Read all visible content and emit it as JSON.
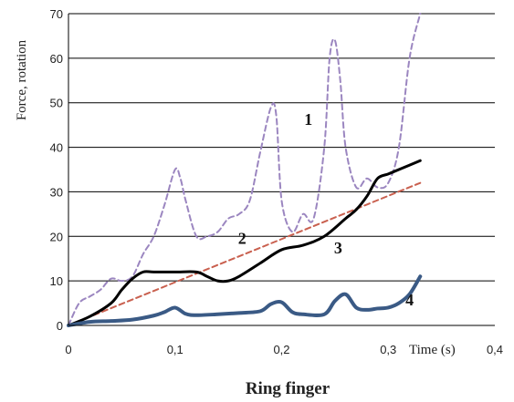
{
  "chart_data": {
    "type": "line",
    "title": "Ring finger",
    "xlabel": "Time (s)",
    "ylabel": "Force, rotation",
    "xlim": [
      0,
      0.4
    ],
    "ylim": [
      0,
      70
    ],
    "xticks": [
      "0",
      "0,1",
      "0,2",
      "0,3",
      "0,4"
    ],
    "yticks": [
      "0",
      "10",
      "20",
      "30",
      "40",
      "50",
      "60",
      "70"
    ],
    "grid": "horizontal",
    "series": [
      {
        "name": "1",
        "color": "#9b86c0",
        "style": "dashed",
        "x": [
          0.0,
          0.01,
          0.02,
          0.03,
          0.04,
          0.05,
          0.06,
          0.07,
          0.08,
          0.09,
          0.1,
          0.105,
          0.11,
          0.12,
          0.13,
          0.14,
          0.15,
          0.16,
          0.17,
          0.18,
          0.19,
          0.195,
          0.2,
          0.21,
          0.22,
          0.23,
          0.24,
          0.245,
          0.25,
          0.255,
          0.26,
          0.27,
          0.28,
          0.29,
          0.3,
          0.31,
          0.32,
          0.33
        ],
        "values": [
          0,
          5,
          6.5,
          8,
          10.5,
          10,
          11,
          16,
          20,
          27,
          35,
          33,
          28,
          20,
          20,
          21,
          24,
          25,
          28,
          39,
          49,
          47,
          28,
          21,
          25,
          24,
          40,
          60,
          64,
          55,
          40,
          31,
          33,
          31,
          32,
          40,
          60,
          71
        ]
      },
      {
        "name": "2",
        "color": "#c9604f",
        "style": "dashed",
        "x": [
          0.0,
          0.33
        ],
        "values": [
          0,
          32
        ]
      },
      {
        "name": "3",
        "color": "#000000",
        "style": "solid",
        "x": [
          0.0,
          0.02,
          0.04,
          0.05,
          0.06,
          0.07,
          0.08,
          0.1,
          0.12,
          0.13,
          0.14,
          0.15,
          0.16,
          0.18,
          0.2,
          0.22,
          0.24,
          0.26,
          0.27,
          0.28,
          0.29,
          0.3,
          0.31,
          0.33
        ],
        "values": [
          0,
          2,
          5,
          8,
          10.5,
          12,
          12,
          12,
          12,
          11,
          10,
          10,
          11,
          14,
          17,
          18,
          20,
          24,
          26,
          29,
          33,
          34,
          35,
          37
        ]
      },
      {
        "name": "4",
        "color": "#3a5a85",
        "style": "solid",
        "x": [
          0.0,
          0.02,
          0.04,
          0.06,
          0.08,
          0.09,
          0.1,
          0.11,
          0.12,
          0.14,
          0.16,
          0.18,
          0.19,
          0.2,
          0.21,
          0.22,
          0.24,
          0.25,
          0.26,
          0.27,
          0.28,
          0.29,
          0.3,
          0.31,
          0.32,
          0.33
        ],
        "values": [
          0,
          0.8,
          1,
          1.3,
          2.2,
          3,
          4,
          2.6,
          2.3,
          2.5,
          2.8,
          3.2,
          4.8,
          5.2,
          3,
          2.5,
          2.5,
          5.5,
          7,
          4,
          3.5,
          3.8,
          4,
          5,
          7,
          11
        ]
      }
    ],
    "annotations": [
      {
        "text": "1",
        "x": 0.225,
        "y": 45
      },
      {
        "text": "2",
        "x": 0.163,
        "y": 18.3
      },
      {
        "text": "3",
        "x": 0.253,
        "y": 16.2
      },
      {
        "text": "4",
        "x": 0.32,
        "y": 4.5
      }
    ]
  }
}
